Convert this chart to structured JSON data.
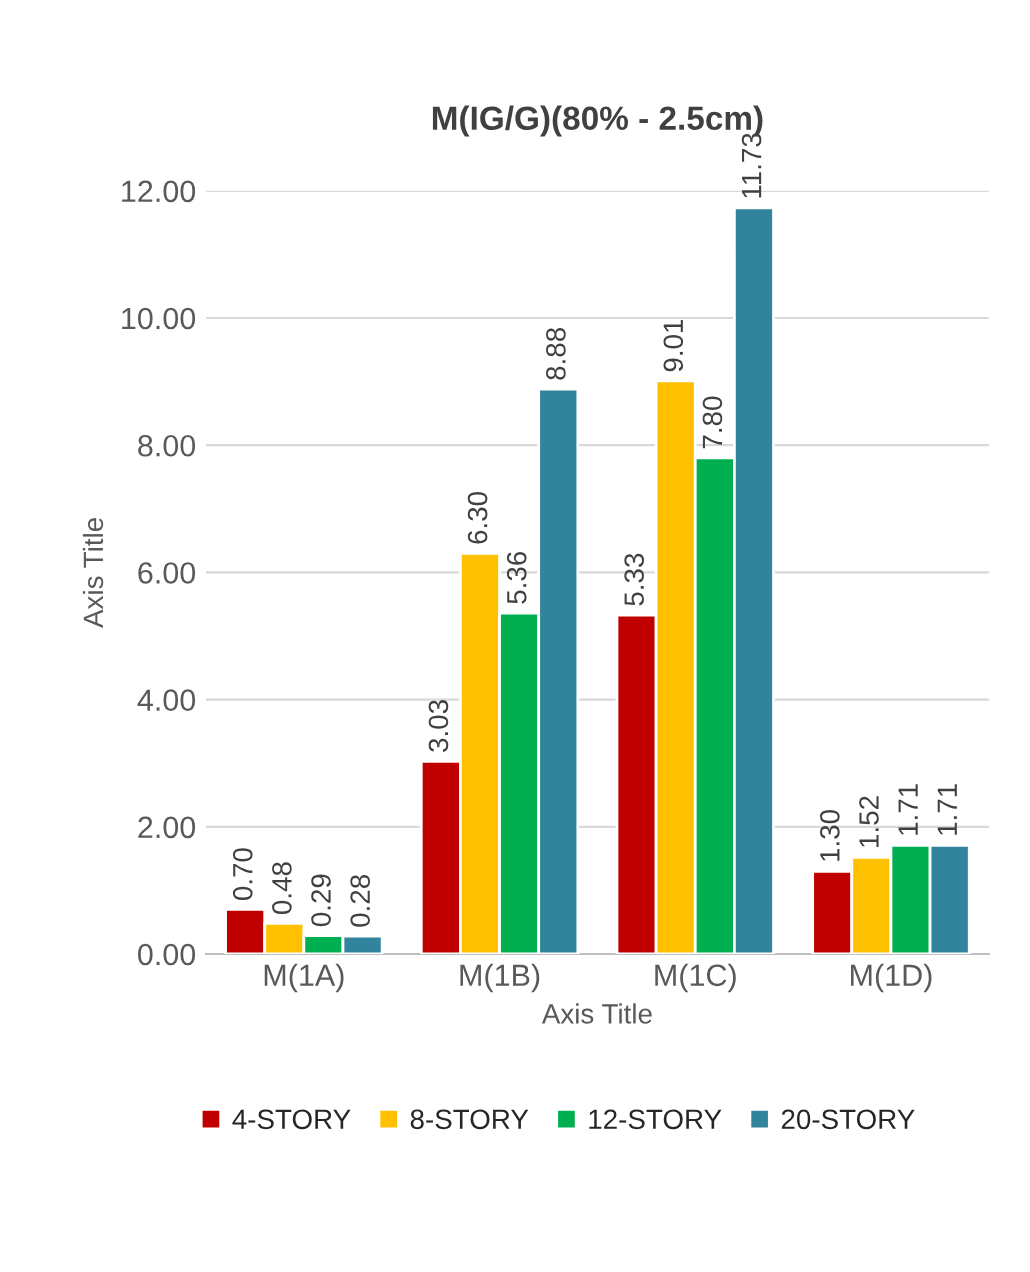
{
  "chart_data": {
    "type": "bar",
    "title": "M(IG/G)(80% - 2.5cm)",
    "xlabel": "Axis Title",
    "ylabel": "Axis Title",
    "categories": [
      "M(1A)",
      "M(1B)",
      "M(1C)",
      "M(1D)"
    ],
    "series": [
      {
        "name": "4-STORY",
        "color": "#c00000",
        "values": [
          0.7,
          3.03,
          5.33,
          1.3
        ],
        "value_labels": [
          "0.70",
          "3.03",
          "5.33",
          "1.30"
        ]
      },
      {
        "name": "8-STORY",
        "color": "#ffc000",
        "values": [
          0.48,
          6.3,
          9.01,
          1.52
        ],
        "value_labels": [
          "0.48",
          "6.30",
          "9.01",
          "1.52"
        ]
      },
      {
        "name": "12-STORY",
        "color": "#00b050",
        "values": [
          0.29,
          5.36,
          7.8,
          1.71
        ],
        "value_labels": [
          "0.29",
          "5.36",
          "7.80",
          "1.71"
        ]
      },
      {
        "name": "20-STORY",
        "color": "#31849b",
        "values": [
          0.28,
          8.88,
          11.73,
          1.71
        ],
        "value_labels": [
          "0.28",
          "8.88",
          "11.73",
          "1.71"
        ]
      }
    ],
    "ylim": [
      0,
      12
    ],
    "yticks": [
      {
        "value": 0,
        "label": "0.00"
      },
      {
        "value": 2,
        "label": "2.00"
      },
      {
        "value": 4,
        "label": "4.00"
      },
      {
        "value": 6,
        "label": "6.00"
      },
      {
        "value": 8,
        "label": "8.00"
      },
      {
        "value": 10,
        "label": "10.00"
      },
      {
        "value": 12,
        "label": "12.00"
      }
    ],
    "grid": "y",
    "legend": "bottom"
  }
}
